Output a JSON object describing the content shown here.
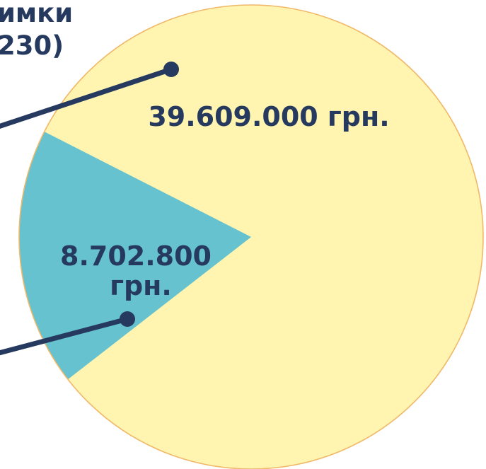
{
  "heading": {
    "line1": "имки",
    "line2": "230)"
  },
  "chart_data": {
    "type": "pie",
    "title": "",
    "slices": [
      {
        "label": "39.609.000 грн.",
        "value": 39609000,
        "color": "#fff4b0"
      },
      {
        "label_line1": "8.702.800",
        "label_line2": "грн.",
        "value": 8702800,
        "color": "#66c2cf"
      }
    ],
    "leader_color": "#26395f",
    "outline_color": "#f0b868"
  }
}
